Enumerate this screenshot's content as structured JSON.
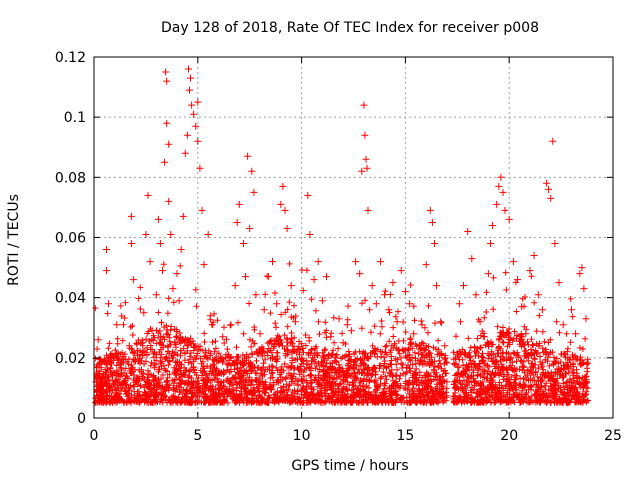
{
  "chart_data": {
    "type": "scatter",
    "title": "Day 128 of 2018, Rate Of TEC Index for receiver p008",
    "xlabel": "GPS time / hours",
    "ylabel": "ROTI / TECUs",
    "xlim": [
      0,
      25
    ],
    "ylim": [
      0,
      0.12
    ],
    "xticks": [
      0,
      5,
      10,
      15,
      20,
      25
    ],
    "xtick_labels": [
      "0",
      "5",
      "10",
      "15",
      "20",
      "25"
    ],
    "yticks": [
      0,
      0.02,
      0.04,
      0.06,
      0.08,
      0.1,
      0.12
    ],
    "ytick_labels": [
      "0",
      "0.02",
      "0.04",
      "0.06",
      "0.08",
      "0.1",
      "0.12"
    ],
    "grid": true,
    "marker": "plus",
    "series": [
      {
        "name": "p008 ROTI",
        "color": "#ff0000",
        "points": [
          [
            0.1,
            0.012
          ],
          [
            0.2,
            0.026
          ],
          [
            0.3,
            0.018
          ],
          [
            0.4,
            0.009
          ],
          [
            0.6,
            0.056
          ],
          [
            0.6,
            0.049
          ],
          [
            0.7,
            0.038
          ],
          [
            0.8,
            0.021
          ],
          [
            0.9,
            0.014
          ],
          [
            1.0,
            0.011
          ],
          [
            1.1,
            0.031
          ],
          [
            1.3,
            0.016
          ],
          [
            1.5,
            0.009
          ],
          [
            1.7,
            0.024
          ],
          [
            1.8,
            0.067
          ],
          [
            1.8,
            0.058
          ],
          [
            1.9,
            0.046
          ],
          [
            2.0,
            0.019
          ],
          [
            2.2,
            0.013
          ],
          [
            2.4,
            0.035
          ],
          [
            2.5,
            0.061
          ],
          [
            2.6,
            0.074
          ],
          [
            2.7,
            0.052
          ],
          [
            2.8,
            0.029
          ],
          [
            2.9,
            0.018
          ],
          [
            3.0,
            0.041
          ],
          [
            3.1,
            0.066
          ],
          [
            3.2,
            0.058
          ],
          [
            3.3,
            0.049
          ],
          [
            3.4,
            0.085
          ],
          [
            3.45,
            0.115
          ],
          [
            3.5,
            0.112
          ],
          [
            3.5,
            0.098
          ],
          [
            3.6,
            0.091
          ],
          [
            3.6,
            0.072
          ],
          [
            3.7,
            0.061
          ],
          [
            3.8,
            0.043
          ],
          [
            3.9,
            0.025
          ],
          [
            4.0,
            0.048
          ],
          [
            4.1,
            0.039
          ],
          [
            4.2,
            0.056
          ],
          [
            4.3,
            0.067
          ],
          [
            4.4,
            0.088
          ],
          [
            4.5,
            0.094
          ],
          [
            4.55,
            0.116
          ],
          [
            4.6,
            0.109
          ],
          [
            4.65,
            0.113
          ],
          [
            4.7,
            0.104
          ],
          [
            4.8,
            0.101
          ],
          [
            4.9,
            0.097
          ],
          [
            5.0,
            0.105
          ],
          [
            5.0,
            0.092
          ],
          [
            5.1,
            0.083
          ],
          [
            5.2,
            0.069
          ],
          [
            5.3,
            0.051
          ],
          [
            5.5,
            0.061
          ],
          [
            5.6,
            0.034
          ],
          [
            5.8,
            0.022
          ],
          [
            6.0,
            0.015
          ],
          [
            6.2,
            0.027
          ],
          [
            6.4,
            0.018
          ],
          [
            6.6,
            0.031
          ],
          [
            6.8,
            0.044
          ],
          [
            6.9,
            0.065
          ],
          [
            7.0,
            0.071
          ],
          [
            7.2,
            0.058
          ],
          [
            7.3,
            0.047
          ],
          [
            7.4,
            0.087
          ],
          [
            7.5,
            0.063
          ],
          [
            7.6,
            0.082
          ],
          [
            7.7,
            0.075
          ],
          [
            7.8,
            0.041
          ],
          [
            8.0,
            0.028
          ],
          [
            8.2,
            0.036
          ],
          [
            8.4,
            0.047
          ],
          [
            8.6,
            0.052
          ],
          [
            8.8,
            0.038
          ],
          [
            9.0,
            0.071
          ],
          [
            9.1,
            0.077
          ],
          [
            9.2,
            0.069
          ],
          [
            9.3,
            0.063
          ],
          [
            9.5,
            0.044
          ],
          [
            9.7,
            0.032
          ],
          [
            9.9,
            0.021
          ],
          [
            10.1,
            0.018
          ],
          [
            10.3,
            0.074
          ],
          [
            10.4,
            0.061
          ],
          [
            10.6,
            0.046
          ],
          [
            10.8,
            0.052
          ],
          [
            11.0,
            0.039
          ],
          [
            11.2,
            0.047
          ],
          [
            11.4,
            0.027
          ],
          [
            11.6,
            0.019
          ],
          [
            11.8,
            0.033
          ],
          [
            12.0,
            0.025
          ],
          [
            12.2,
            0.031
          ],
          [
            12.4,
            0.029
          ],
          [
            12.6,
            0.052
          ],
          [
            12.8,
            0.048
          ],
          [
            12.9,
            0.082
          ],
          [
            13.0,
            0.104
          ],
          [
            13.05,
            0.094
          ],
          [
            13.1,
            0.086
          ],
          [
            13.15,
            0.083
          ],
          [
            13.2,
            0.069
          ],
          [
            13.4,
            0.044
          ],
          [
            13.6,
            0.038
          ],
          [
            13.8,
            0.052
          ],
          [
            14.0,
            0.041
          ],
          [
            14.2,
            0.036
          ],
          [
            14.4,
            0.045
          ],
          [
            14.6,
            0.032
          ],
          [
            14.8,
            0.049
          ],
          [
            15.0,
            0.042
          ],
          [
            15.2,
            0.038
          ],
          [
            15.4,
            0.028
          ],
          [
            15.6,
            0.019
          ],
          [
            15.8,
            0.031
          ],
          [
            16.0,
            0.051
          ],
          [
            16.2,
            0.069
          ],
          [
            16.3,
            0.065
          ],
          [
            16.4,
            0.058
          ],
          [
            16.5,
            0.044
          ],
          [
            16.7,
            0.032
          ],
          [
            16.9,
            0.024
          ],
          [
            17.0,
            0.012
          ],
          [
            17.5,
            0.021
          ],
          [
            17.6,
            0.038
          ],
          [
            17.8,
            0.044
          ],
          [
            18.0,
            0.062
          ],
          [
            18.2,
            0.053
          ],
          [
            18.4,
            0.041
          ],
          [
            18.6,
            0.032
          ],
          [
            18.8,
            0.027
          ],
          [
            19.0,
            0.048
          ],
          [
            19.1,
            0.058
          ],
          [
            19.2,
            0.064
          ],
          [
            19.4,
            0.071
          ],
          [
            19.5,
            0.077
          ],
          [
            19.6,
            0.08
          ],
          [
            19.7,
            0.075
          ],
          [
            19.8,
            0.069
          ],
          [
            20.0,
            0.066
          ],
          [
            20.2,
            0.052
          ],
          [
            20.4,
            0.046
          ],
          [
            20.6,
            0.037
          ],
          [
            20.8,
            0.028
          ],
          [
            21.0,
            0.049
          ],
          [
            21.2,
            0.054
          ],
          [
            21.4,
            0.041
          ],
          [
            21.6,
            0.036
          ],
          [
            21.8,
            0.078
          ],
          [
            21.9,
            0.076
          ],
          [
            22.0,
            0.073
          ],
          [
            22.1,
            0.092
          ],
          [
            22.2,
            0.058
          ],
          [
            22.4,
            0.045
          ],
          [
            22.6,
            0.031
          ],
          [
            22.8,
            0.022
          ],
          [
            23.0,
            0.036
          ],
          [
            23.2,
            0.028
          ],
          [
            23.4,
            0.048
          ],
          [
            23.5,
            0.05
          ],
          [
            23.6,
            0.043
          ],
          [
            23.7,
            0.033
          ]
        ]
      }
    ]
  }
}
